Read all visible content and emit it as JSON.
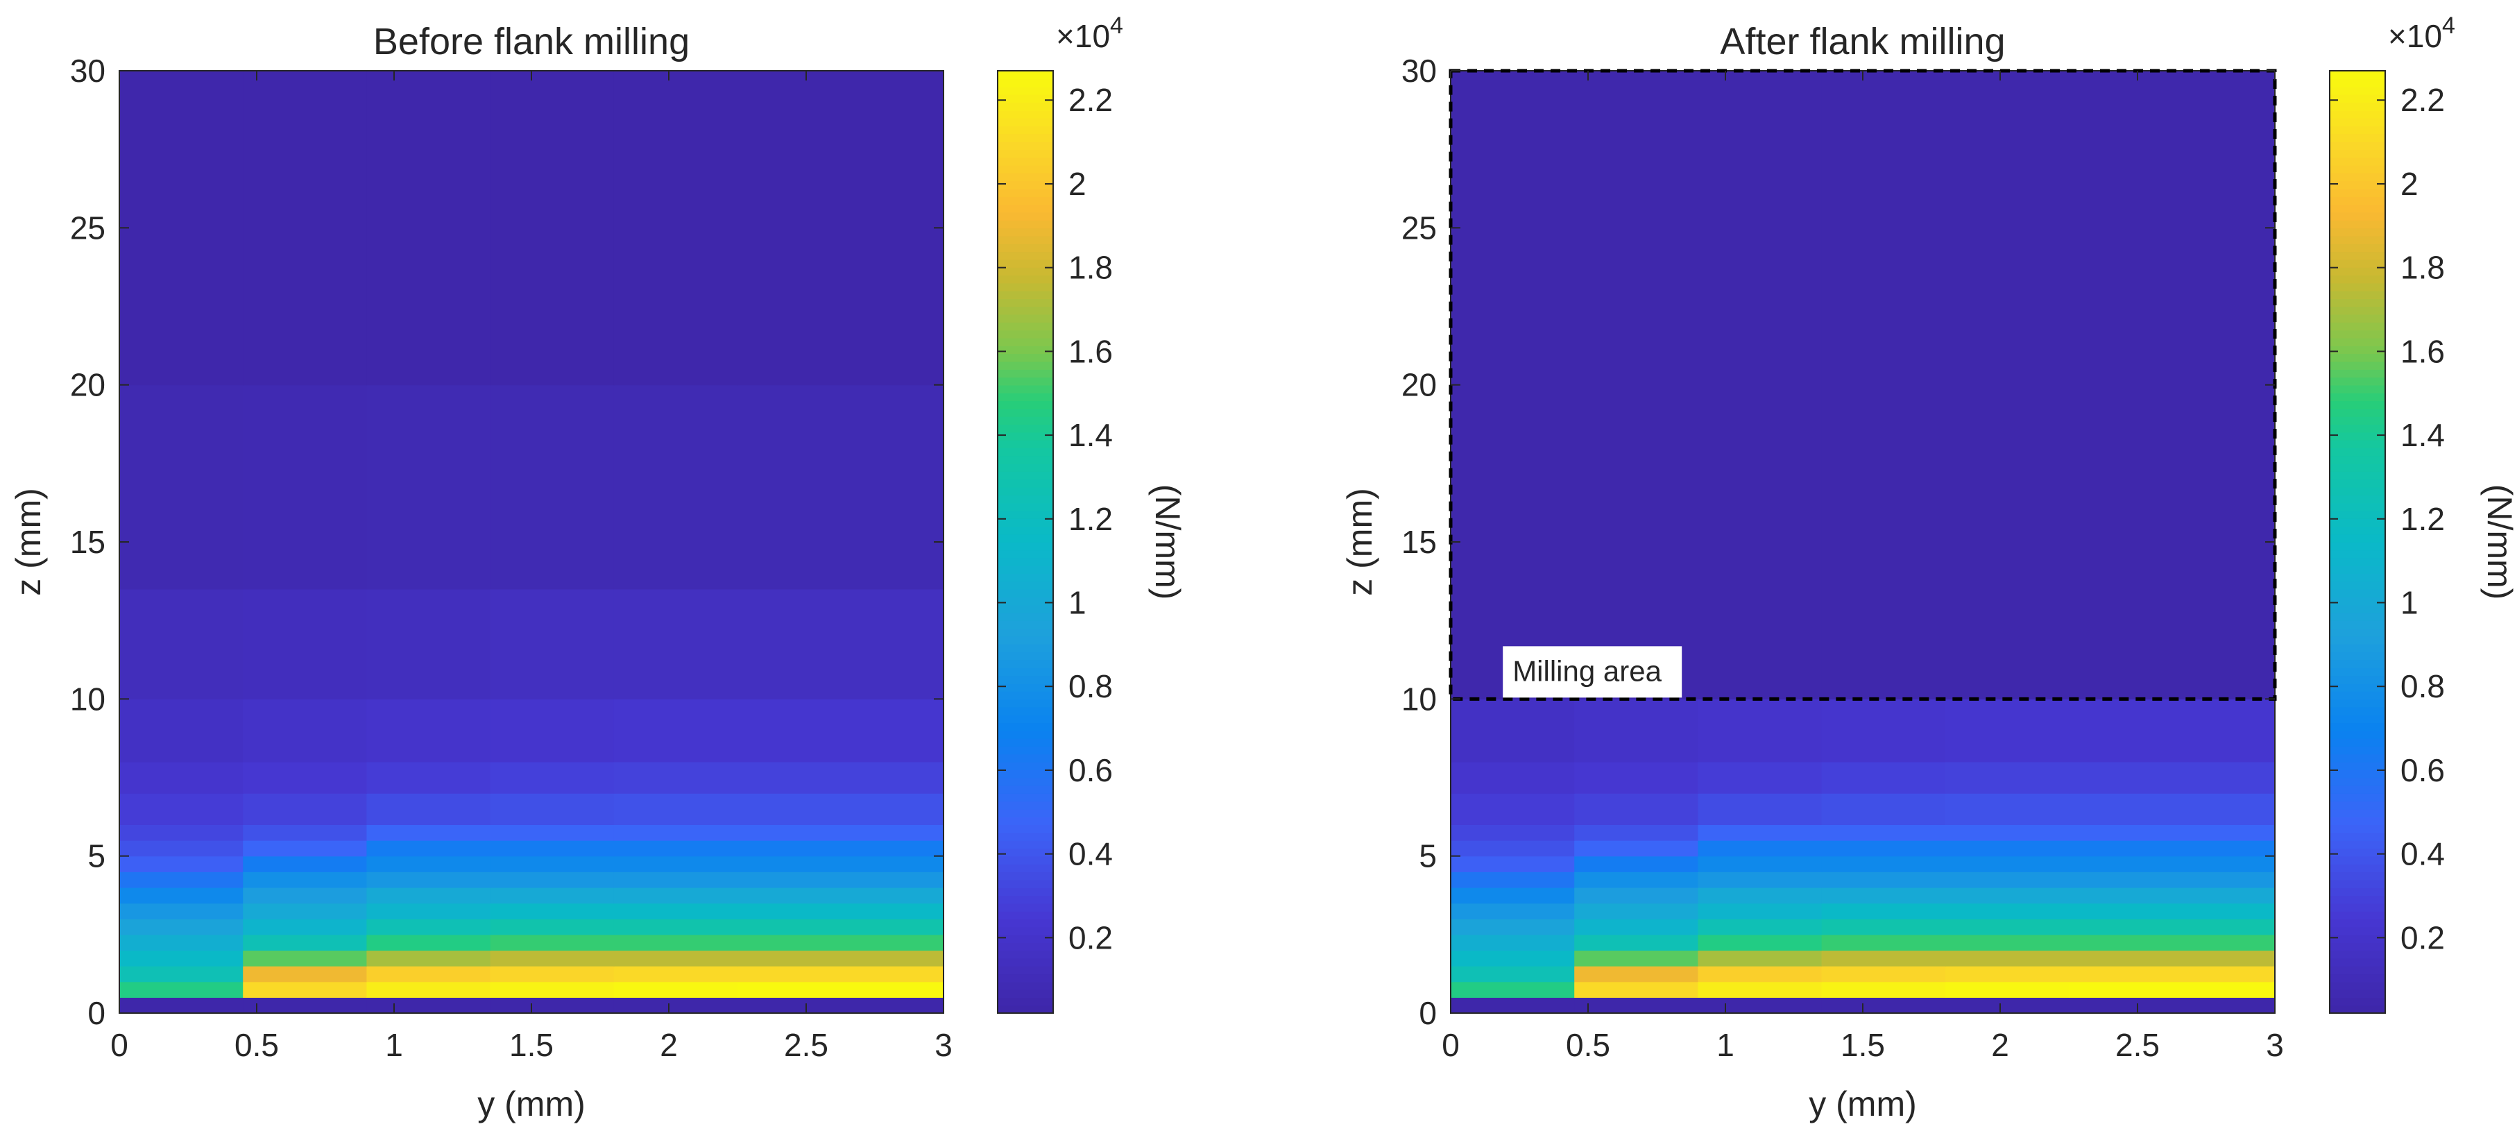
{
  "chart_data": [
    {
      "type": "heatmap",
      "title": "Before flank milling",
      "xlabel": "y (mm)",
      "ylabel": "z (mm)",
      "xlim": [
        0,
        3
      ],
      "ylim": [
        0,
        30
      ],
      "xticks": [
        "0",
        "0.5",
        "1",
        "1.5",
        "2",
        "2.5",
        "3"
      ],
      "yticks": [
        "0",
        "5",
        "10",
        "15",
        "20",
        "25",
        "30"
      ],
      "colorbar": {
        "label": "(N/mm)",
        "exponent": "4",
        "range": [
          200,
          22700
        ],
        "ticks": [
          "0.2",
          "0.4",
          "0.6",
          "0.8",
          "1",
          "1.2",
          "1.4",
          "1.6",
          "1.8",
          "2",
          "2.2"
        ],
        "tick_values": [
          2000,
          4000,
          6000,
          8000,
          10000,
          12000,
          14000,
          16000,
          18000,
          20000,
          22000
        ]
      },
      "grid": {
        "x_edges": [
          0,
          0.45,
          0.9,
          1.35,
          1.8,
          2.25,
          3.0
        ],
        "z_edges": [
          0,
          0.5,
          1.0,
          1.5,
          2.0,
          2.5,
          3.0,
          3.5,
          4.0,
          4.5,
          5.0,
          5.5,
          6.0,
          7.0,
          8.0,
          10.0,
          13.5,
          20.0,
          30.0
        ],
        "values": [
          [
            300,
            300,
            300,
            300,
            300,
            300
          ],
          [
            14500,
            21000,
            22000,
            22300,
            22500,
            22600
          ],
          [
            12500,
            19000,
            20500,
            20800,
            21000,
            21000
          ],
          [
            11500,
            15500,
            17000,
            17500,
            17500,
            17500
          ],
          [
            10500,
            12500,
            14500,
            15000,
            15000,
            15000
          ],
          [
            9500,
            11000,
            12500,
            13000,
            13000,
            13000
          ],
          [
            8500,
            10000,
            11000,
            11500,
            11500,
            11500
          ],
          [
            7500,
            9000,
            10000,
            10000,
            10000,
            10000
          ],
          [
            6000,
            8000,
            8500,
            8500,
            8500,
            8500
          ],
          [
            4500,
            6500,
            7500,
            7500,
            7500,
            7500
          ],
          [
            3800,
            4800,
            6500,
            6500,
            6500,
            6500
          ],
          [
            3200,
            3800,
            4800,
            4800,
            4800,
            4800
          ],
          [
            2700,
            3000,
            3500,
            3700,
            3800,
            3800
          ],
          [
            2200,
            2400,
            2700,
            2900,
            3000,
            3000
          ],
          [
            1700,
            1900,
            2100,
            2200,
            2300,
            2300
          ],
          [
            1200,
            1300,
            1400,
            1500,
            1500,
            1500
          ],
          [
            700,
            750,
            800,
            800,
            800,
            800
          ],
          [
            350,
            350,
            350,
            350,
            350,
            350
          ]
        ]
      }
    },
    {
      "type": "heatmap",
      "title": "After flank milling",
      "xlabel": "y (mm)",
      "ylabel": "z (mm)",
      "xlim": [
        0,
        3
      ],
      "ylim": [
        0,
        30
      ],
      "xticks": [
        "0",
        "0.5",
        "1",
        "1.5",
        "2",
        "2.5",
        "3"
      ],
      "yticks": [
        "0",
        "5",
        "10",
        "15",
        "20",
        "25",
        "30"
      ],
      "colorbar": {
        "label": "(N/mm)",
        "exponent": "4",
        "range": [
          200,
          22700
        ],
        "ticks": [
          "0.2",
          "0.4",
          "0.6",
          "0.8",
          "1",
          "1.2",
          "1.4",
          "1.6",
          "1.8",
          "2",
          "2.2"
        ],
        "tick_values": [
          2000,
          4000,
          6000,
          8000,
          10000,
          12000,
          14000,
          16000,
          18000,
          20000,
          22000
        ]
      },
      "annotation": {
        "text": "Milling area",
        "region": {
          "y": [
            0,
            3
          ],
          "z": [
            10,
            30
          ]
        },
        "text_anchor": {
          "y": 0.2,
          "z": 10.0
        }
      },
      "grid": {
        "x_edges": [
          0,
          0.45,
          0.9,
          1.35,
          1.8,
          2.25,
          3.0
        ],
        "z_edges": [
          0,
          0.5,
          1.0,
          1.5,
          2.0,
          2.5,
          3.0,
          3.5,
          4.0,
          4.5,
          5.0,
          5.5,
          6.0,
          7.0,
          8.0,
          10.0,
          30.0
        ],
        "values": [
          [
            300,
            300,
            300,
            300,
            300,
            300
          ],
          [
            14500,
            21000,
            22000,
            22300,
            22500,
            22600
          ],
          [
            12500,
            19000,
            20500,
            20800,
            21000,
            21000
          ],
          [
            11500,
            15500,
            17000,
            17500,
            17500,
            17500
          ],
          [
            10500,
            12500,
            14500,
            15000,
            15000,
            15000
          ],
          [
            9500,
            11000,
            12500,
            13000,
            13000,
            13000
          ],
          [
            8500,
            10000,
            11000,
            11500,
            11500,
            11500
          ],
          [
            7500,
            9000,
            10000,
            10000,
            10000,
            10000
          ],
          [
            6000,
            8000,
            8500,
            8500,
            8500,
            8500
          ],
          [
            4500,
            6500,
            7500,
            7500,
            7500,
            7500
          ],
          [
            3800,
            4800,
            6500,
            6500,
            6500,
            6500
          ],
          [
            3200,
            3800,
            4800,
            4800,
            4800,
            4800
          ],
          [
            2700,
            3000,
            3500,
            3700,
            3800,
            3800
          ],
          [
            2200,
            2400,
            2700,
            2900,
            3000,
            3000
          ],
          [
            1700,
            1900,
            2100,
            2200,
            2300,
            2300
          ],
          [
            400,
            400,
            400,
            400,
            400,
            400
          ]
        ]
      }
    }
  ]
}
